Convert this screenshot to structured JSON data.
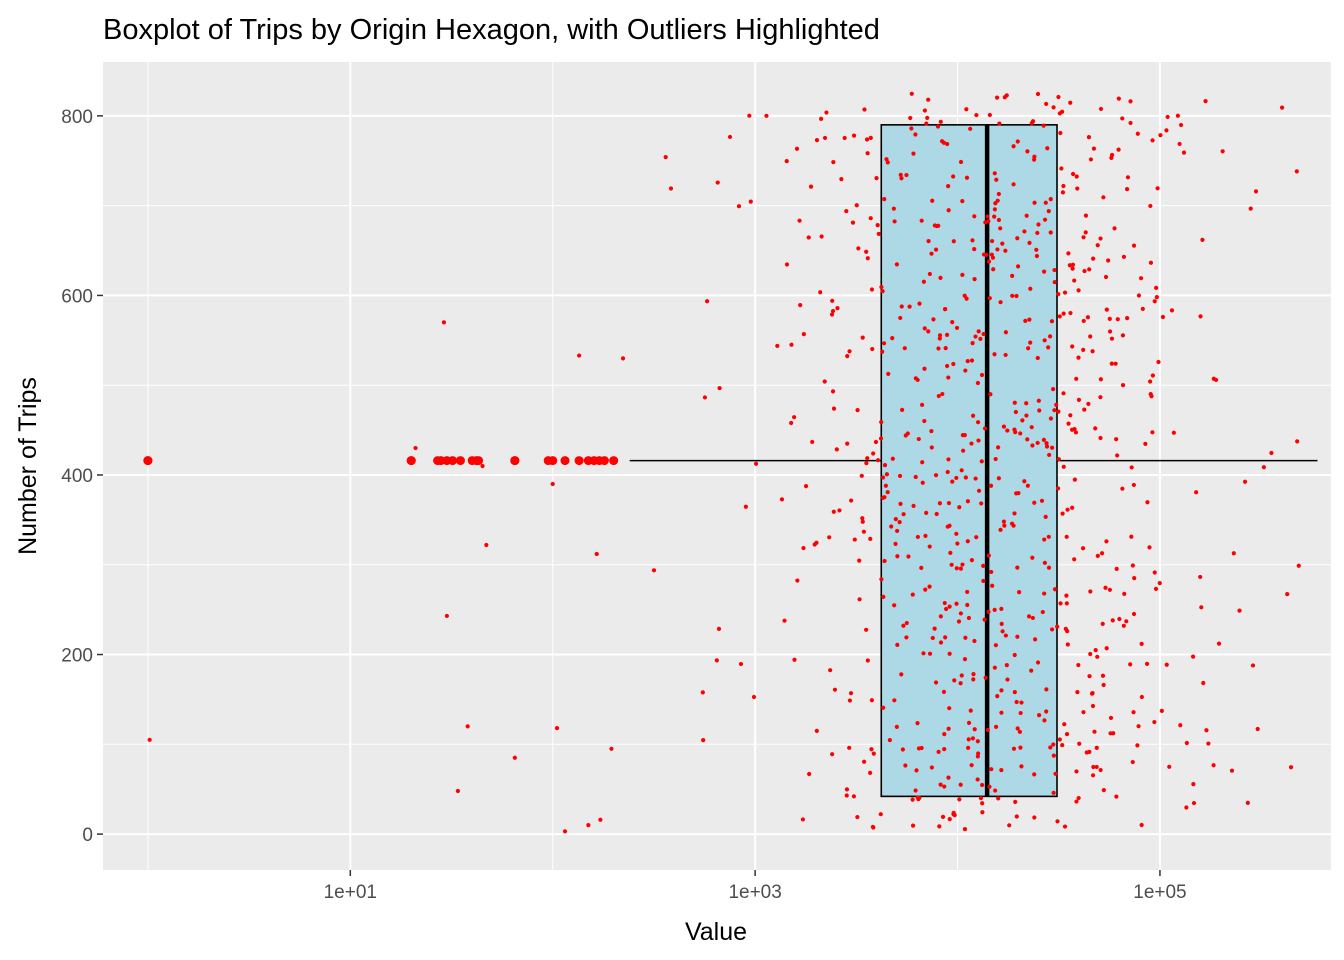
{
  "chart_data": {
    "type": "boxplot",
    "title": "Boxplot of Trips by Origin Hexagon, with Outliers Highlighted",
    "xlabel": "Value",
    "ylabel": "Number of Trips",
    "x_scale": "log10",
    "xlim": [
      0.6,
      700000
    ],
    "ylim": [
      -40,
      860
    ],
    "x_ticks": [
      10,
      1000,
      100000
    ],
    "x_tick_labels": [
      "1e+01",
      "1e+03",
      "1e+05"
    ],
    "y_ticks": [
      0,
      200,
      400,
      600,
      800
    ],
    "y_tick_labels": [
      "0",
      "200",
      "400",
      "600",
      "800"
    ],
    "grid": true,
    "box": {
      "y_position": 416,
      "y_extent": [
        42,
        790
      ],
      "q1": 4200,
      "median": 14000,
      "q3": 31000,
      "whisker_low": 240,
      "whisker_high": 600000,
      "fill": "#add8e6",
      "outliers_x": [
        1,
        1,
        20,
        20,
        27,
        28,
        30,
        32,
        35,
        40,
        42,
        43,
        65,
        65,
        95,
        100,
        115,
        135,
        150,
        160,
        170,
        180,
        200
      ]
    },
    "points": {
      "description": "jittered red points over full range",
      "color": "#ff0000"
    },
    "colors": {
      "panel_background": "#ebebeb",
      "grid_major": "#ffffff",
      "points": "#ff0000",
      "box_fill": "#add8e6",
      "box_line": "#000000"
    }
  }
}
